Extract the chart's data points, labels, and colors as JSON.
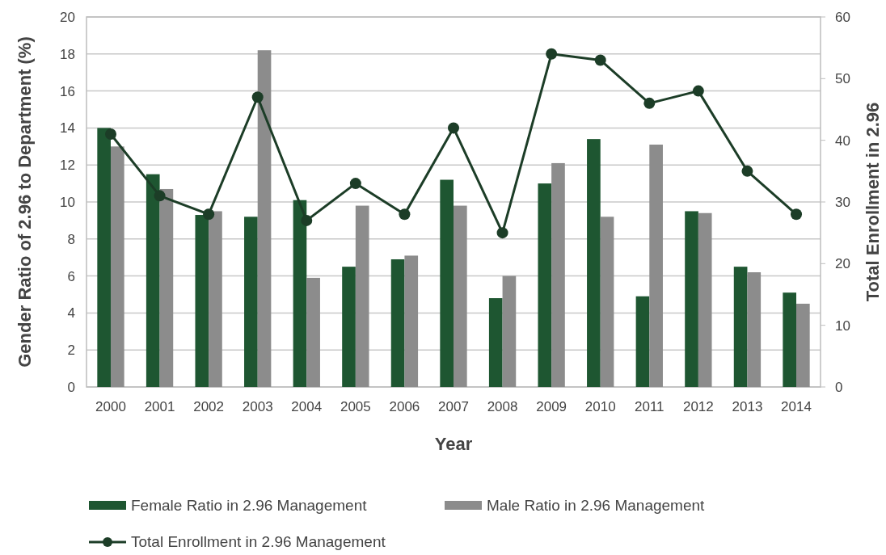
{
  "chart_data": {
    "type": "bar",
    "xlabel": "Year",
    "ylabel": "Gender Ratio of 2.96 to Department (%)",
    "y2label": "Total Enrollment in 2.96",
    "categories": [
      "2000",
      "2001",
      "2002",
      "2003",
      "2004",
      "2005",
      "2006",
      "2007",
      "2008",
      "2009",
      "2010",
      "2011",
      "2012",
      "2013",
      "2014"
    ],
    "series": [
      {
        "name": "Female Ratio in 2.96 Management",
        "color": "#1e5631",
        "values": [
          14,
          11.5,
          9.3,
          9.2,
          10.1,
          6.5,
          6.9,
          11.2,
          4.8,
          11.0,
          13.4,
          4.9,
          9.5,
          6.5,
          5.1
        ]
      },
      {
        "name": "Male Ratio in 2.96 Management",
        "color": "#8c8c8c",
        "values": [
          13.0,
          10.7,
          9.5,
          18.2,
          5.9,
          9.8,
          7.1,
          9.8,
          6.0,
          12.1,
          9.2,
          13.1,
          9.4,
          6.2,
          4.5
        ]
      },
      {
        "name": "Total Enrollment in 2.96 Management",
        "type": "line",
        "axis": "y2",
        "color": "#1c3d27",
        "marker": "circle",
        "values": [
          41,
          31,
          28,
          47,
          27,
          33,
          28,
          42,
          25,
          54,
          53,
          46,
          48,
          35,
          28
        ]
      }
    ],
    "ylim": [
      0,
      20
    ],
    "yticks": [
      0,
      2,
      4,
      6,
      8,
      10,
      12,
      14,
      16,
      18,
      20
    ],
    "y2lim": [
      0,
      60
    ],
    "y2ticks": [
      0,
      10,
      20,
      30,
      40,
      50,
      60
    ],
    "grid": "y",
    "legend": "bottom"
  }
}
